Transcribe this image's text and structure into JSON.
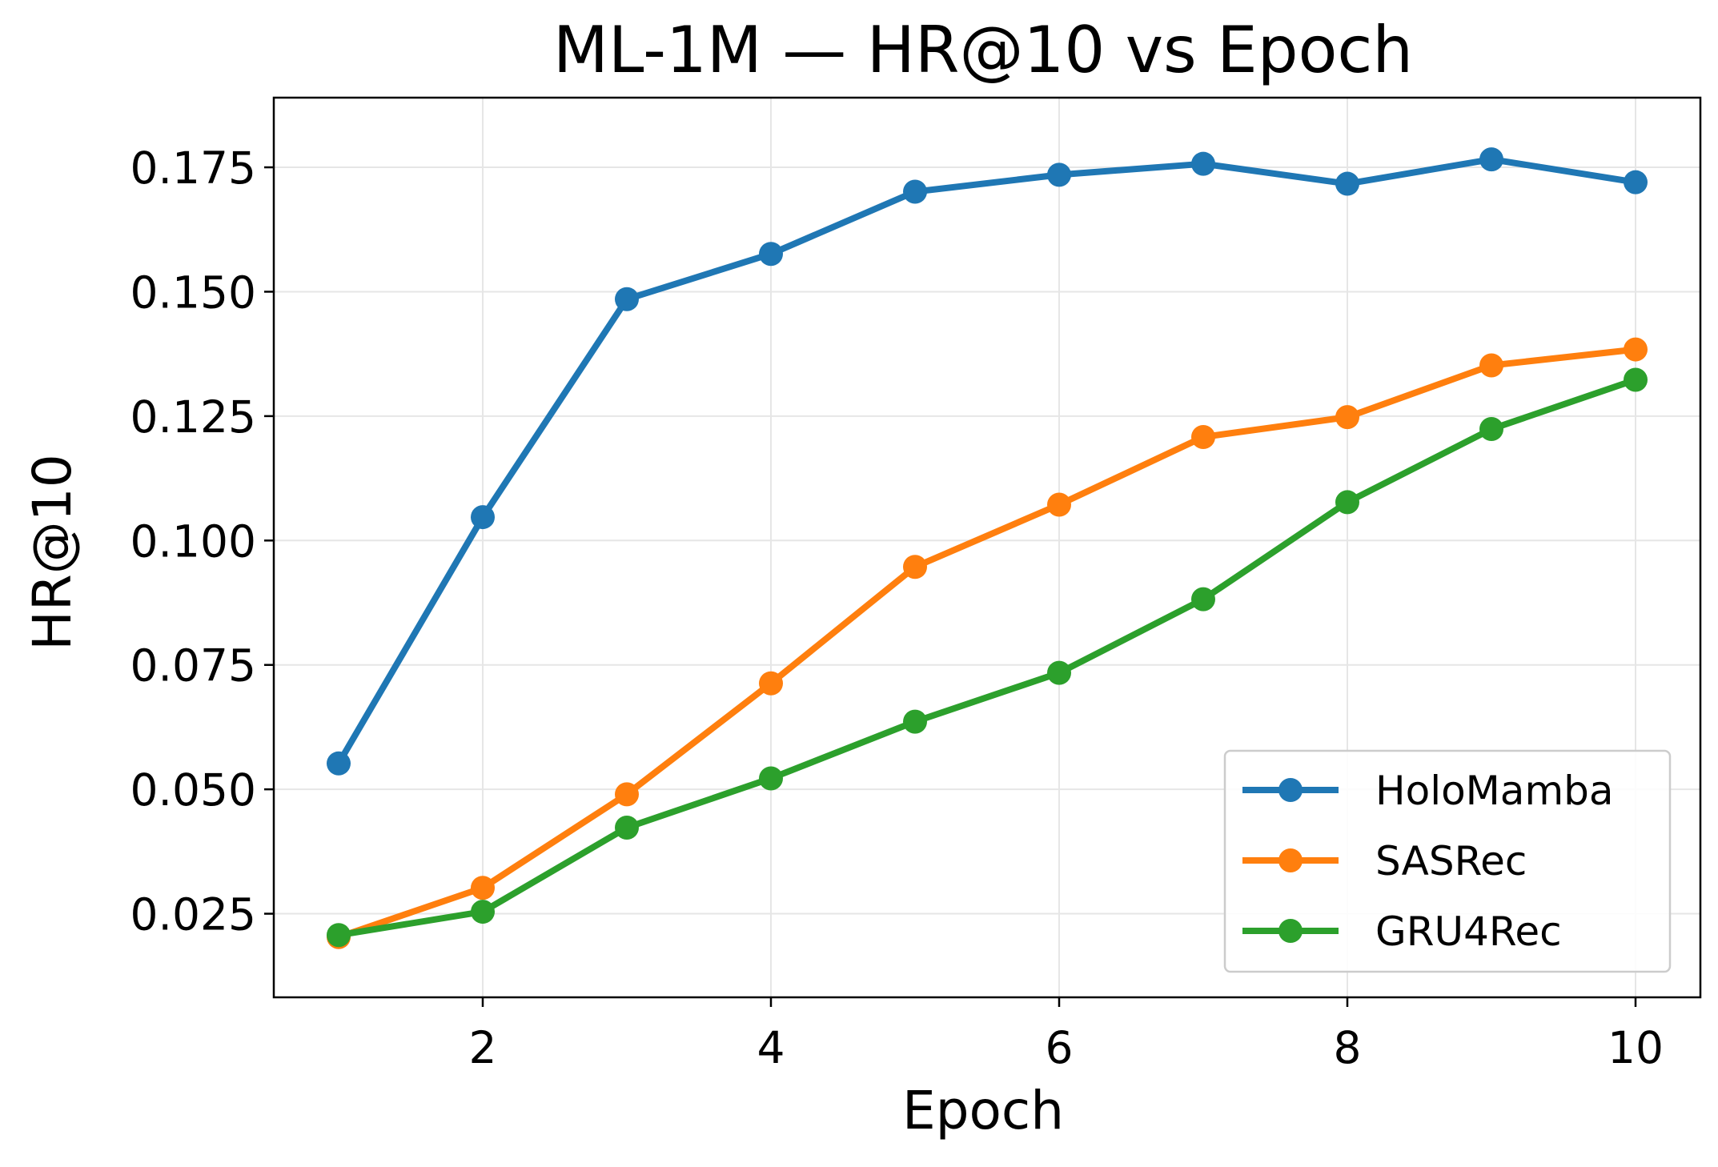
{
  "chart_data": {
    "type": "line",
    "title": "ML-1M — HR@10 vs Epoch",
    "xlabel": "Epoch",
    "ylabel": "HR@10",
    "x": [
      1,
      2,
      3,
      4,
      5,
      6,
      7,
      8,
      9,
      10
    ],
    "xlim": [
      0.55,
      10.45
    ],
    "ylim": [
      0.0082,
      0.189
    ],
    "xticks": [
      2,
      4,
      6,
      8,
      10
    ],
    "xtick_labels": [
      "2",
      "4",
      "6",
      "8",
      "10"
    ],
    "yticks": [
      0.025,
      0.05,
      0.075,
      0.1,
      0.125,
      0.15,
      0.175
    ],
    "ytick_labels": [
      "0.025",
      "0.050",
      "0.075",
      "0.100",
      "0.125",
      "0.150",
      "0.175"
    ],
    "grid": true,
    "legend_position": "lower-right",
    "series": [
      {
        "name": "HoloMamba",
        "color": "#1f77b4",
        "values": [
          0.0552,
          0.1047,
          0.1485,
          0.1576,
          0.1701,
          0.1735,
          0.1757,
          0.1717,
          0.1766,
          0.172
        ]
      },
      {
        "name": "SASRec",
        "color": "#ff7f0e",
        "values": [
          0.0203,
          0.0302,
          0.049,
          0.0713,
          0.0947,
          0.1072,
          0.1208,
          0.1248,
          0.1352,
          0.1384
        ]
      },
      {
        "name": "GRU4Rec",
        "color": "#2ca02c",
        "values": [
          0.0207,
          0.0254,
          0.0423,
          0.0522,
          0.0636,
          0.0734,
          0.0882,
          0.1077,
          0.1224,
          0.1323
        ]
      }
    ]
  }
}
